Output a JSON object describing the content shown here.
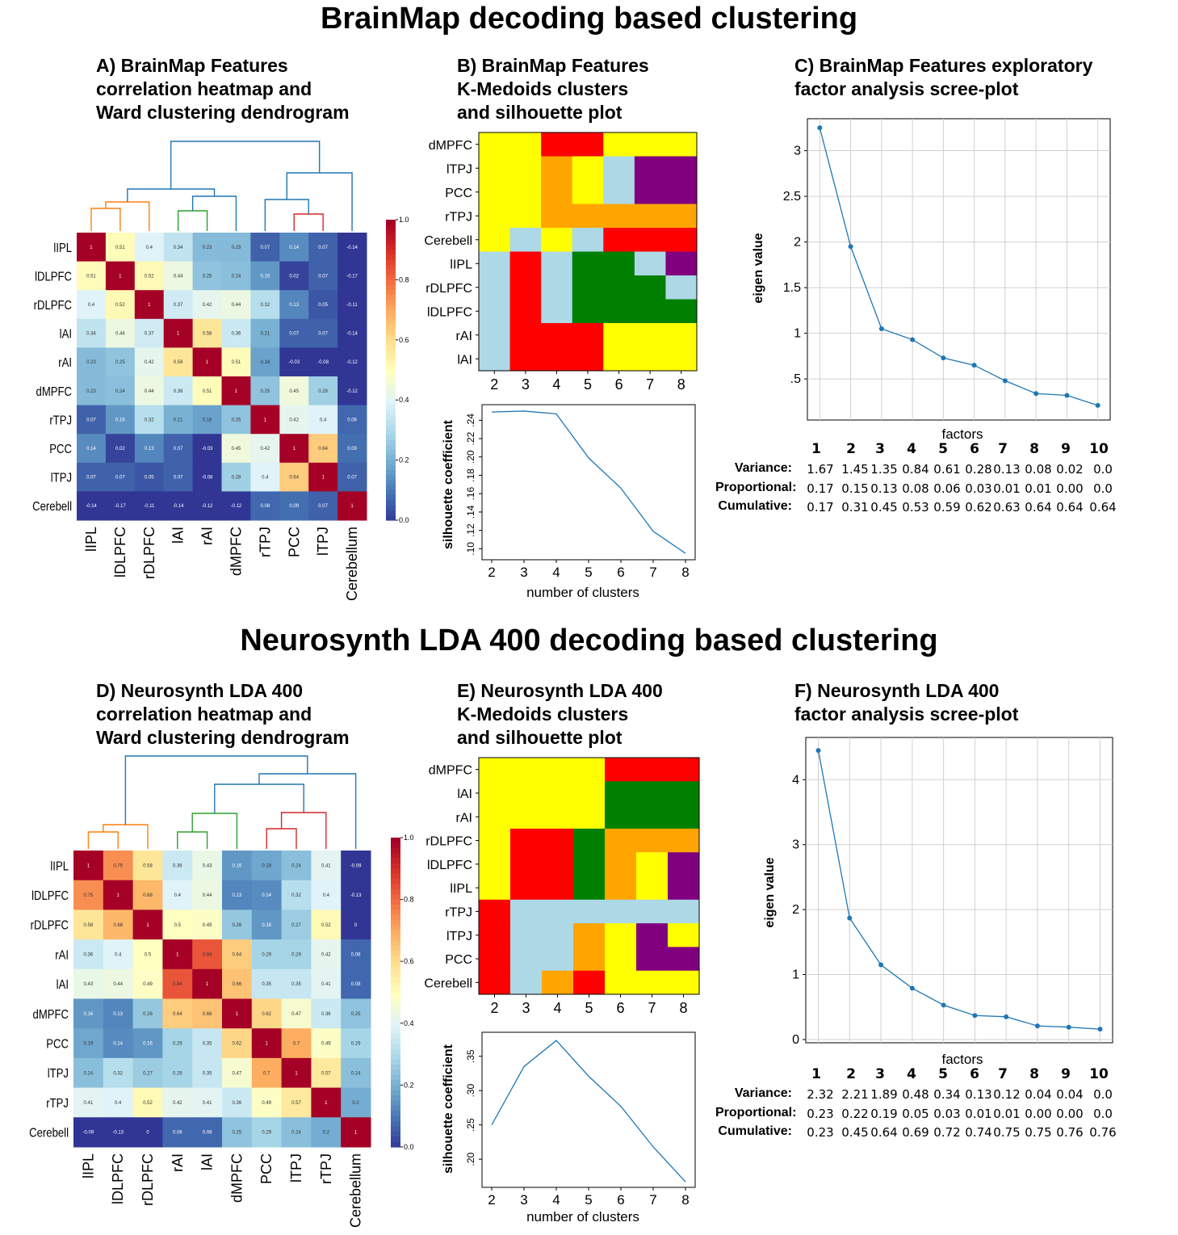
{
  "titles": {
    "top": "BrainMap decoding based clustering",
    "bottom": "Neurosynth LDA 400 decoding based clustering"
  },
  "panel_titles": {
    "A": [
      "A) BrainMap Features",
      "correlation heatmap and",
      "Ward clustering dendrogram"
    ],
    "B": [
      "B) BrainMap Features",
      "K-Medoids clusters",
      "and silhouette plot"
    ],
    "C": [
      "C) BrainMap Features exploratory",
      "factor analysis scree-plot"
    ],
    "D": [
      "D) Neurosynth LDA 400",
      "correlation heatmap and",
      "Ward clustering dendrogram"
    ],
    "E": [
      "E) Neurosynth LDA 400",
      "K-Medoids clusters",
      "and silhouette plot"
    ],
    "F": [
      "F) Neurosynth LDA 400",
      "factor analysis scree-plot"
    ]
  },
  "colors": {
    "yellow": "#ffff00",
    "red": "#ff0000",
    "orange": "#ffa500",
    "lightblue": "#add8e6",
    "purple": "#800080",
    "green": "#008000",
    "line": "#1f77b4",
    "dendro_orange": "#ff7f0e",
    "dendro_green": "#2ca02c",
    "dendro_red": "#d62728",
    "dendro_blue": "#1f77b4"
  },
  "chart_data": [
    {
      "id": "A",
      "type": "heatmap",
      "row_labels": [
        "lIPL",
        "lDLPFC",
        "rDLPFC",
        "lAI",
        "rAI",
        "dMPFC",
        "rTPJ",
        "PCC",
        "lTPJ",
        "Cerebell"
      ],
      "col_labels": [
        "lIPL",
        "lDLPFC",
        "rDLPFC",
        "lAI",
        "rAI",
        "dMPFC",
        "rTPJ",
        "PCC",
        "lTPJ",
        "Cerebellum"
      ],
      "cell_labels": [
        [
          "1",
          "0.51",
          "0.4",
          "0.34",
          "0.23",
          "0.23",
          "0.07",
          "0.14",
          "0.07",
          "-0.14"
        ],
        [
          "0.51",
          "1",
          "0.52",
          "0.44",
          "0.25",
          "0.24",
          "0.16",
          "0.02",
          "0.07",
          "-0.17"
        ],
        [
          "0.4",
          "0.52",
          "1",
          "0.37",
          "0.42",
          "0.44",
          "0.32",
          "0.13",
          "0.05",
          "-0.11"
        ],
        [
          "0.34",
          "0.44",
          "0.37",
          "1",
          "0.58",
          "0.36",
          "0.21",
          "0.07",
          "0.07",
          "-0.14"
        ],
        [
          "0.23",
          "0.25",
          "0.42",
          "0.58",
          "1",
          "0.51",
          "0.18",
          "-0.03",
          "-0.08",
          "-0.12"
        ],
        [
          "0.23",
          "0.24",
          "0.44",
          "0.36",
          "0.51",
          "1",
          "0.25",
          "0.45",
          "0.28",
          "-0.12"
        ],
        [
          "0.07",
          "0.16",
          "0.32",
          "0.21",
          "0.18",
          "0.25",
          "1",
          "0.42",
          "0.4",
          "0.08"
        ],
        [
          "0.14",
          "0.02",
          "0.13",
          "0.07",
          "-0.03",
          "0.45",
          "0.42",
          "1",
          "0.64",
          "0.09"
        ],
        [
          "0.07",
          "0.07",
          "0.05",
          "0.07",
          "-0.08",
          "0.28",
          "0.4",
          "0.64",
          "1",
          "0.07"
        ],
        [
          "-0.14",
          "-0.17",
          "-0.11",
          "-0.14",
          "-0.12",
          "-0.12",
          "0.08",
          "0.09",
          "0.07",
          "1"
        ]
      ],
      "colorbar_ticks": [
        "1.0",
        "0.8",
        "0.6",
        "0.4",
        "0.2",
        "0.0"
      ],
      "colorbar_range": [
        0,
        1
      ]
    },
    {
      "id": "B",
      "type": "heatmap",
      "row_labels": [
        "dMPFC",
        "lTPJ",
        "PCC",
        "rTPJ",
        "Cerebell",
        "lIPL",
        "rDLPFC",
        "lDLPFC",
        "rAI",
        "lAI"
      ],
      "col_labels": [
        "2",
        "3",
        "4",
        "5",
        "6",
        "7",
        "8"
      ],
      "cells": [
        [
          "yellow",
          "yellow",
          "red",
          "red",
          "yellow",
          "yellow",
          "yellow"
        ],
        [
          "yellow",
          "yellow",
          "orange",
          "yellow",
          "lightblue",
          "purple",
          "purple"
        ],
        [
          "yellow",
          "yellow",
          "orange",
          "yellow",
          "lightblue",
          "purple",
          "purple"
        ],
        [
          "yellow",
          "yellow",
          "orange",
          "orange",
          "orange",
          "orange",
          "orange"
        ],
        [
          "yellow",
          "lightblue",
          "yellow",
          "lightblue",
          "red",
          "red",
          "red"
        ],
        [
          "lightblue",
          "red",
          "lightblue",
          "green",
          "green",
          "lightblue",
          "purple"
        ],
        [
          "lightblue",
          "red",
          "lightblue",
          "green",
          "green",
          "green",
          "lightblue"
        ],
        [
          "lightblue",
          "red",
          "lightblue",
          "green",
          "green",
          "green",
          "green"
        ],
        [
          "lightblue",
          "red",
          "red",
          "red",
          "yellow",
          "yellow",
          "yellow"
        ],
        [
          "lightblue",
          "red",
          "red",
          "red",
          "yellow",
          "yellow",
          "yellow"
        ]
      ]
    },
    {
      "id": "B-silhouette",
      "type": "line",
      "x": [
        2,
        3,
        4,
        5,
        6,
        7,
        8
      ],
      "y": [
        0.249,
        0.25,
        0.247,
        0.199,
        0.166,
        0.119,
        0.095
      ],
      "xlabel": "number of clusters",
      "ylabel": "silhouette coefficient",
      "x_ticks": [
        "2",
        "3",
        "4",
        "5",
        "6",
        "7",
        "8"
      ],
      "y_ticks": [
        ".24",
        ".22",
        ".20",
        ".18",
        ".16",
        ".14",
        ".12",
        ".10"
      ],
      "y_tick_values": [
        0.24,
        0.22,
        0.2,
        0.18,
        0.16,
        0.14,
        0.12,
        0.1
      ]
    },
    {
      "id": "C",
      "type": "line",
      "x": [
        1,
        2,
        3,
        4,
        5,
        6,
        7,
        8,
        9,
        10
      ],
      "y": [
        3.25,
        1.95,
        1.05,
        0.93,
        0.73,
        0.65,
        0.48,
        0.34,
        0.32,
        0.21
      ],
      "xlabel": "factors",
      "ylabel": "eigen value",
      "y_ticks": [
        "3",
        "2.5",
        "2",
        "1.5",
        "1",
        ".5"
      ],
      "y_tick_values": [
        3,
        2.5,
        2,
        1.5,
        1,
        0.5
      ],
      "x_ticks": [
        "1",
        "2",
        "3",
        "4",
        "5",
        "6",
        "7",
        "8",
        "9",
        "10"
      ],
      "table": {
        "labels": [
          "Variance:",
          "Proportional:",
          "Cumulative:"
        ],
        "rows": [
          [
            "1.67",
            "1.45",
            "1.35",
            "0.84",
            "0.61",
            "0.28",
            "0.13",
            "0.08",
            "0.02",
            "0.0"
          ],
          [
            "0.17",
            "0.15",
            "0.13",
            "0.08",
            "0.06",
            "0.03",
            "0.01",
            "0.01",
            "0.00",
            "0.0"
          ],
          [
            "0.17",
            "0.31",
            "0.45",
            "0.53",
            "0.59",
            "0.62",
            "0.63",
            "0.64",
            "0.64",
            "0.64"
          ]
        ]
      }
    },
    {
      "id": "D",
      "type": "heatmap",
      "row_labels": [
        "lIPL",
        "lDLPFC",
        "rDLPFC",
        "rAI",
        "lAI",
        "dMPFC",
        "PCC",
        "lTPJ",
        "rTPJ",
        "Cerebell"
      ],
      "col_labels": [
        "lIPL",
        "lDLPFC",
        "rDLPFC",
        "rAI",
        "lAI",
        "dMPFC",
        "PCC",
        "lTPJ",
        "rTPJ",
        "Cerebellum"
      ],
      "cell_labels": [
        [
          "1",
          "0.75",
          "0.58",
          "0.36",
          "0.43",
          "0.16",
          "0.19",
          "0.24",
          "0.41",
          "-0.09"
        ],
        [
          "0.75",
          "1",
          "0.68",
          "0.4",
          "0.44",
          "0.13",
          "0.14",
          "0.32",
          "0.4",
          "-0.13"
        ],
        [
          "0.58",
          "0.68",
          "1",
          "0.5",
          "0.49",
          "0.26",
          "0.16",
          "0.27",
          "0.52",
          "0"
        ],
        [
          "0.36",
          "0.4",
          "0.5",
          "1",
          "0.84",
          "0.64",
          "0.29",
          "0.29",
          "0.42",
          "0.08"
        ],
        [
          "0.43",
          "0.44",
          "0.49",
          "0.84",
          "1",
          "0.66",
          "0.35",
          "0.35",
          "0.41",
          "0.08"
        ],
        [
          "0.16",
          "0.13",
          "0.26",
          "0.64",
          "0.66",
          "1",
          "0.62",
          "0.47",
          "0.36",
          "0.25"
        ],
        [
          "0.19",
          "0.14",
          "0.16",
          "0.29",
          "0.35",
          "0.62",
          "1",
          "0.7",
          "0.49",
          "0.29"
        ],
        [
          "0.24",
          "0.32",
          "0.27",
          "0.29",
          "0.35",
          "0.47",
          "0.7",
          "1",
          "0.57",
          "0.24"
        ],
        [
          "0.41",
          "0.4",
          "0.52",
          "0.42",
          "0.41",
          "0.36",
          "0.49",
          "0.57",
          "1",
          "0.2"
        ],
        [
          "-0.09",
          "-0.13",
          "0",
          "0.08",
          "0.08",
          "0.25",
          "0.29",
          "0.24",
          "0.2",
          "1"
        ]
      ],
      "colorbar_ticks": [
        "1.0",
        "0.8",
        "0.6",
        "0.4",
        "0.2",
        "0.0"
      ],
      "colorbar_range": [
        0,
        1
      ]
    },
    {
      "id": "E",
      "type": "heatmap",
      "row_labels": [
        "dMPFC",
        "lAI",
        "rAI",
        "rDLPFC",
        "lDLPFC",
        "lIPL",
        "rTPJ",
        "lTPJ",
        "PCC",
        "Cerebell"
      ],
      "col_labels": [
        "2",
        "3",
        "4",
        "5",
        "6",
        "7",
        "8"
      ],
      "cells": [
        [
          "yellow",
          "yellow",
          "yellow",
          "yellow",
          "red",
          "red",
          "red"
        ],
        [
          "yellow",
          "yellow",
          "yellow",
          "yellow",
          "green",
          "green",
          "green"
        ],
        [
          "yellow",
          "yellow",
          "yellow",
          "yellow",
          "green",
          "green",
          "green"
        ],
        [
          "yellow",
          "red",
          "red",
          "green",
          "orange",
          "orange",
          "orange"
        ],
        [
          "yellow",
          "red",
          "red",
          "green",
          "orange",
          "yellow",
          "purple"
        ],
        [
          "yellow",
          "red",
          "red",
          "green",
          "orange",
          "yellow",
          "purple"
        ],
        [
          "red",
          "lightblue",
          "lightblue",
          "lightblue",
          "lightblue",
          "lightblue",
          "lightblue"
        ],
        [
          "red",
          "lightblue",
          "lightblue",
          "orange",
          "yellow",
          "purple",
          "yellow"
        ],
        [
          "red",
          "lightblue",
          "lightblue",
          "orange",
          "yellow",
          "purple",
          "purple"
        ],
        [
          "red",
          "lightblue",
          "orange",
          "red",
          "yellow",
          "yellow",
          "yellow"
        ]
      ]
    },
    {
      "id": "E-silhouette",
      "type": "line",
      "x": [
        2,
        3,
        4,
        5,
        6,
        7,
        8
      ],
      "y": [
        0.25,
        0.335,
        0.373,
        0.321,
        0.277,
        0.218,
        0.167
      ],
      "xlabel": "number of clusters",
      "ylabel": "silhouette coefficient",
      "x_ticks": [
        "2",
        "3",
        "4",
        "5",
        "6",
        "7",
        "8"
      ],
      "y_ticks": [
        ".35",
        ".30",
        ".25",
        ".20"
      ],
      "y_tick_values": [
        0.35,
        0.3,
        0.25,
        0.2
      ]
    },
    {
      "id": "F",
      "type": "line",
      "x": [
        1,
        2,
        3,
        4,
        5,
        6,
        7,
        8,
        9,
        10
      ],
      "y": [
        4.45,
        1.87,
        1.15,
        0.79,
        0.53,
        0.37,
        0.35,
        0.21,
        0.19,
        0.16
      ],
      "xlabel": "factors",
      "ylabel": "eigen value",
      "y_ticks": [
        "4",
        "3",
        "2",
        "1",
        "0"
      ],
      "y_tick_values": [
        4,
        3,
        2,
        1,
        0
      ],
      "x_ticks": [
        "1",
        "2",
        "3",
        "4",
        "5",
        "6",
        "7",
        "8",
        "9",
        "10"
      ],
      "table": {
        "labels": [
          "Variance:",
          "Proportional:",
          "Cumulative:"
        ],
        "rows": [
          [
            "2.32",
            "2.21",
            "1.89",
            "0.48",
            "0.34",
            "0.13",
            "0.12",
            "0.04",
            "0.04",
            "0.0"
          ],
          [
            "0.23",
            "0.22",
            "0.19",
            "0.05",
            "0.03",
            "0.01",
            "0.01",
            "0.00",
            "0.00",
            "0.0"
          ],
          [
            "0.23",
            "0.45",
            "0.64",
            "0.69",
            "0.72",
            "0.74",
            "0.75",
            "0.75",
            "0.76",
            "0.76"
          ]
        ]
      }
    }
  ]
}
